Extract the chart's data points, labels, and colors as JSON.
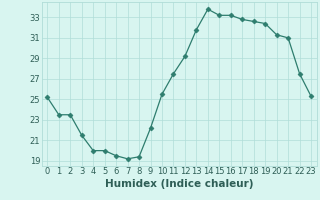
{
  "x": [
    0,
    1,
    2,
    3,
    4,
    5,
    6,
    7,
    8,
    9,
    10,
    11,
    12,
    13,
    14,
    15,
    16,
    17,
    18,
    19,
    20,
    21,
    22,
    23
  ],
  "y": [
    25.2,
    23.5,
    23.5,
    21.5,
    20.0,
    20.0,
    19.5,
    19.2,
    19.4,
    22.2,
    25.5,
    27.5,
    29.2,
    31.8,
    33.8,
    33.2,
    33.2,
    32.8,
    32.6,
    32.4,
    31.3,
    31.0,
    27.5,
    25.3
  ],
  "line_color": "#2e7d6e",
  "marker": "D",
  "marker_size": 2.5,
  "bg_color": "#d8f5f0",
  "grid_color": "#b0ddd8",
  "xlabel": "Humidex (Indice chaleur)",
  "ylim": [
    18.5,
    34.5
  ],
  "xlim": [
    -0.5,
    23.5
  ],
  "yticks": [
    19,
    21,
    23,
    25,
    27,
    29,
    31,
    33
  ],
  "xticks": [
    0,
    1,
    2,
    3,
    4,
    5,
    6,
    7,
    8,
    9,
    10,
    11,
    12,
    13,
    14,
    15,
    16,
    17,
    18,
    19,
    20,
    21,
    22,
    23
  ],
  "font_color": "#2e5e56",
  "tick_font_size": 6.0,
  "xlabel_font_size": 7.5,
  "linewidth": 0.9
}
